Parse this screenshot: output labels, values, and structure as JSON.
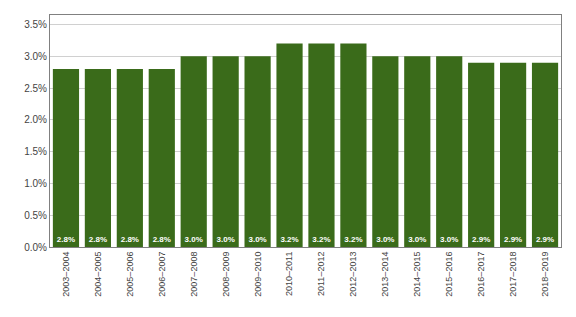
{
  "chart_data": {
    "type": "bar",
    "categories": [
      "2003–2004",
      "2004–2005",
      "2005–2006",
      "2006–2007",
      "2007–2008",
      "2008–2009",
      "2009–2010",
      "2010–2011",
      "2011–2012",
      "2012–2013",
      "2013–2014",
      "2014–2015",
      "2015–2016",
      "2016–2017",
      "2017–2018",
      "2018–2019"
    ],
    "values": [
      0.028,
      0.028,
      0.028,
      0.028,
      0.03,
      0.03,
      0.03,
      0.032,
      0.032,
      0.032,
      0.03,
      0.03,
      0.03,
      0.029,
      0.029,
      0.029
    ],
    "value_labels": [
      "2.8%",
      "2.8%",
      "2.8%",
      "2.8%",
      "3.0%",
      "3.0%",
      "3.0%",
      "3.2%",
      "3.2%",
      "3.2%",
      "3.0%",
      "3.0%",
      "3.0%",
      "2.9%",
      "2.9%",
      "2.9%"
    ],
    "color": "#3a6b1a",
    "ylim": [
      0,
      0.0365
    ],
    "yticks": [
      {
        "value": 0.0,
        "label": "0.0%"
      },
      {
        "value": 0.005,
        "label": "0.5%"
      },
      {
        "value": 0.01,
        "label": "1.0%"
      },
      {
        "value": 0.015,
        "label": "1.5%"
      },
      {
        "value": 0.02,
        "label": "2.0%"
      },
      {
        "value": 0.025,
        "label": "2.5%"
      },
      {
        "value": 0.03,
        "label": "3.0%"
      },
      {
        "value": 0.035,
        "label": "3.5%"
      }
    ],
    "grid": true,
    "data_labels": true
  }
}
